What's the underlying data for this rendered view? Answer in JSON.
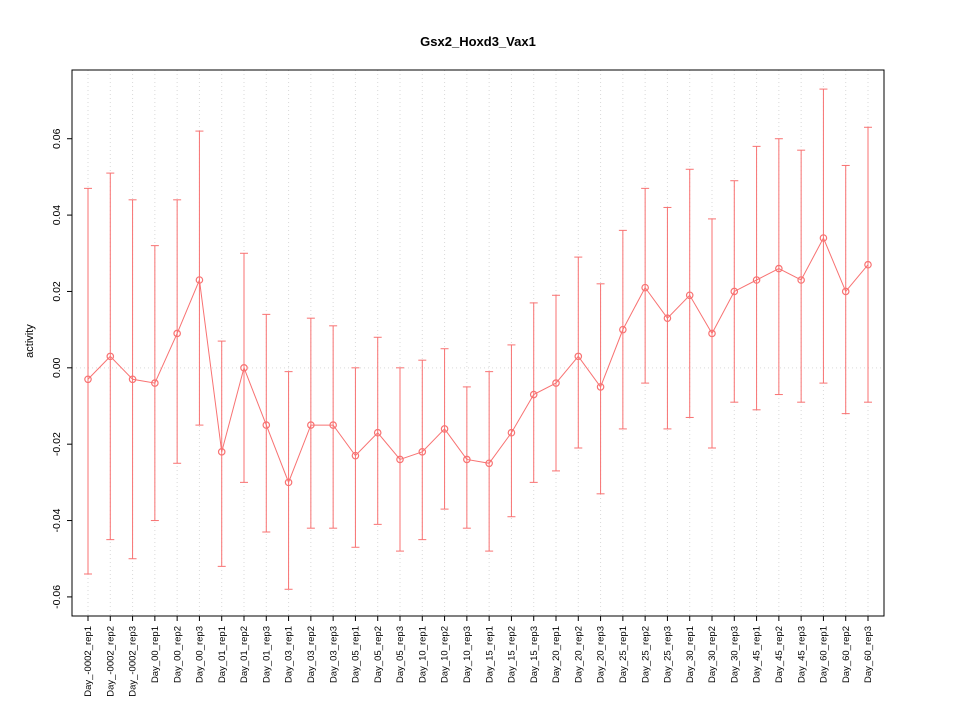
{
  "title": "Gsx2_Hoxd3_Vax1",
  "ylabel": "activity",
  "chart_data": {
    "type": "line",
    "title": "Gsx2_Hoxd3_Vax1",
    "xlabel": "",
    "ylabel": "activity",
    "ylim": [
      -0.065,
      0.078
    ],
    "yticks": [
      -0.06,
      -0.04,
      -0.02,
      0.0,
      0.02,
      0.04,
      0.06
    ],
    "grid": "dotted vertical gridline at each category, dotted horizontal line at y=0",
    "legend_position": "none",
    "point_style": "open-circle with error bars, connected by line",
    "series_color": "#f87272",
    "grid_color": "#d9d9d9",
    "categories": [
      "Day_-0002_rep1",
      "Day_-0002_rep2",
      "Day_-0002_rep3",
      "Day_00_rep1",
      "Day_00_rep2",
      "Day_00_rep3",
      "Day_01_rep1",
      "Day_01_rep2",
      "Day_01_rep3",
      "Day_03_rep1",
      "Day_03_rep2",
      "Day_03_rep3",
      "Day_05_rep1",
      "Day_05_rep2",
      "Day_05_rep3",
      "Day_10_rep1",
      "Day_10_rep2",
      "Day_10_rep3",
      "Day_15_rep1",
      "Day_15_rep2",
      "Day_15_rep3",
      "Day_20_rep1",
      "Day_20_rep2",
      "Day_20_rep3",
      "Day_25_rep1",
      "Day_25_rep2",
      "Day_25_rep3",
      "Day_30_rep1",
      "Day_30_rep2",
      "Day_30_rep3",
      "Day_45_rep1",
      "Day_45_rep2",
      "Day_45_rep3",
      "Day_60_rep1",
      "Day_60_rep2",
      "Day_60_rep3"
    ],
    "values": [
      -0.003,
      0.003,
      -0.003,
      -0.004,
      0.009,
      0.023,
      -0.022,
      0.0,
      -0.015,
      -0.03,
      -0.015,
      -0.015,
      -0.023,
      -0.017,
      -0.024,
      -0.022,
      -0.016,
      -0.024,
      -0.025,
      -0.017,
      -0.007,
      -0.004,
      0.003,
      -0.005,
      0.01,
      0.021,
      0.013,
      0.019,
      0.009,
      0.02,
      0.023,
      0.026,
      0.023,
      0.034,
      0.02,
      0.027
    ],
    "ci_low": [
      -0.054,
      -0.045,
      -0.05,
      -0.04,
      -0.025,
      -0.015,
      -0.052,
      -0.03,
      -0.043,
      -0.058,
      -0.042,
      -0.042,
      -0.047,
      -0.041,
      -0.048,
      -0.045,
      -0.037,
      -0.042,
      -0.048,
      -0.039,
      -0.03,
      -0.027,
      -0.021,
      -0.033,
      -0.016,
      -0.004,
      -0.016,
      -0.013,
      -0.021,
      -0.009,
      -0.011,
      -0.007,
      -0.009,
      -0.004,
      -0.012,
      -0.009
    ],
    "ci_high": [
      0.047,
      0.051,
      0.044,
      0.032,
      0.044,
      0.062,
      0.007,
      0.03,
      0.014,
      -0.001,
      0.013,
      0.011,
      0.0,
      0.008,
      0.0,
      0.002,
      0.005,
      -0.005,
      -0.001,
      0.006,
      0.017,
      0.019,
      0.029,
      0.022,
      0.036,
      0.047,
      0.042,
      0.052,
      0.039,
      0.049,
      0.058,
      0.06,
      0.057,
      0.073,
      0.053,
      0.063
    ]
  }
}
